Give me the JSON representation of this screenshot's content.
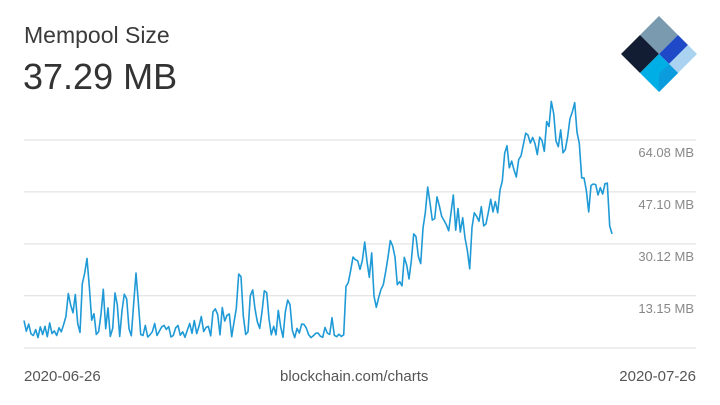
{
  "header": {
    "title": "Mempool Size",
    "current_value": "37.29 MB"
  },
  "logo": {
    "name": "blockchain-logo",
    "colors": [
      "#121d33",
      "#7a9ab0",
      "#1f4ac7",
      "#0c6cf2",
      "#00aee6",
      "#a9d3f0"
    ]
  },
  "footer": {
    "start_date": "2020-06-26",
    "source": "blockchain.com/charts",
    "end_date": "2020-07-26"
  },
  "chart_data": {
    "type": "line",
    "color": "#1f9ad6",
    "grid": true,
    "x_range": [
      "2020-06-26",
      "2020-07-26"
    ],
    "ylim": [
      0,
      81.06
    ],
    "y_ticks": [
      13.15,
      30.12,
      47.1,
      64.08
    ],
    "y_tick_labels": [
      "13.15 MB",
      "30.12 MB",
      "47.10 MB",
      "64.08 MB"
    ],
    "series": [
      {
        "values": [
          9.0,
          5.5,
          7.8,
          4.6,
          4.1,
          6.0,
          3.4,
          6.9,
          4.4,
          7.1,
          3.7,
          8.2,
          4.7,
          5.6,
          4.1,
          6.6,
          5.3,
          7.7,
          10.4,
          17.8,
          14.0,
          11.5,
          17.5,
          8.0,
          5.1,
          21.0,
          24.5,
          29.3,
          20.1,
          9.1,
          11.2,
          4.4,
          5.4,
          11.1,
          19.2,
          6.3,
          13.1,
          3.8,
          6.4,
          18.0,
          14.1,
          3.8,
          12.2,
          17.6,
          16.0,
          6.3,
          4.0,
          14.6,
          24.5,
          15.1,
          4.4,
          4.1,
          7.4,
          3.6,
          4.3,
          5.3,
          8.0,
          4.1,
          5.5,
          6.9,
          7.4,
          6.1,
          7.0,
          3.6,
          4.1,
          6.6,
          7.4,
          4.2,
          5.3,
          3.5,
          5.8,
          8.0,
          4.8,
          9.0,
          4.7,
          7.1,
          10.3,
          5.4,
          6.7,
          7.1,
          4.0,
          11.8,
          12.8,
          10.9,
          4.3,
          13.2,
          8.8,
          10.7,
          11.1,
          3.7,
          8.4,
          12.9,
          24.2,
          23.3,
          10.5,
          4.4,
          5.3,
          17.1,
          19.0,
          12.8,
          8.6,
          6.4,
          11.8,
          18.7,
          18.1,
          9.6,
          4.3,
          7.1,
          4.3,
          12.3,
          6.9,
          3.5,
          11.7,
          15.7,
          14.2,
          5.8,
          3.4,
          6.4,
          4.9,
          7.8,
          7.7,
          6.5,
          4.3,
          3.4,
          4.0,
          4.8,
          4.9,
          3.9,
          3.5,
          6.7,
          4.9,
          4.4,
          9.9,
          4.2,
          3.7,
          4.5,
          3.8,
          4.3,
          20.1,
          21.4,
          25.4,
          29.7,
          28.9,
          28.5,
          25.7,
          28.5,
          34.6,
          28.3,
          23.1,
          31.1,
          17.0,
          13.3,
          16.5,
          19.2,
          20.7,
          25.0,
          29.7,
          35.1,
          33.3,
          29.7,
          20.7,
          21.7,
          20.3,
          29.6,
          27.1,
          22.6,
          28.4,
          37.3,
          36.4,
          30.0,
          27.6,
          39.2,
          44.2,
          52.6,
          47.5,
          41.8,
          42.3,
          49.4,
          46.5,
          43.0,
          41.7,
          40.3,
          38.3,
          44.2,
          50.0,
          38.5,
          45.6,
          37.9,
          42.6,
          36.0,
          32.0,
          25.9,
          39.4,
          44.2,
          43.0,
          41.4,
          46.2,
          39.9,
          40.6,
          44.3,
          48.6,
          44.5,
          47.9,
          44.2,
          51.6,
          54.6,
          63.7,
          66.1,
          58.9,
          61.1,
          58.2,
          55.9,
          61.6,
          62.8,
          66.4,
          70.2,
          69.6,
          67.0,
          68.8,
          66.8,
          63.2,
          68.9,
          67.8,
          64.3,
          74.0,
          72.4,
          80.6,
          76.6,
          67.7,
          65.8,
          71.3,
          63.8,
          64.8,
          69.2,
          75.0,
          77.1,
          80.2,
          70.5,
          66.9,
          55.6,
          55.6,
          51.6,
          44.5,
          53.1,
          53.6,
          53.4,
          50.0,
          52.4,
          50.3,
          53.7,
          53.9,
          39.9,
          37.3
        ]
      }
    ]
  }
}
